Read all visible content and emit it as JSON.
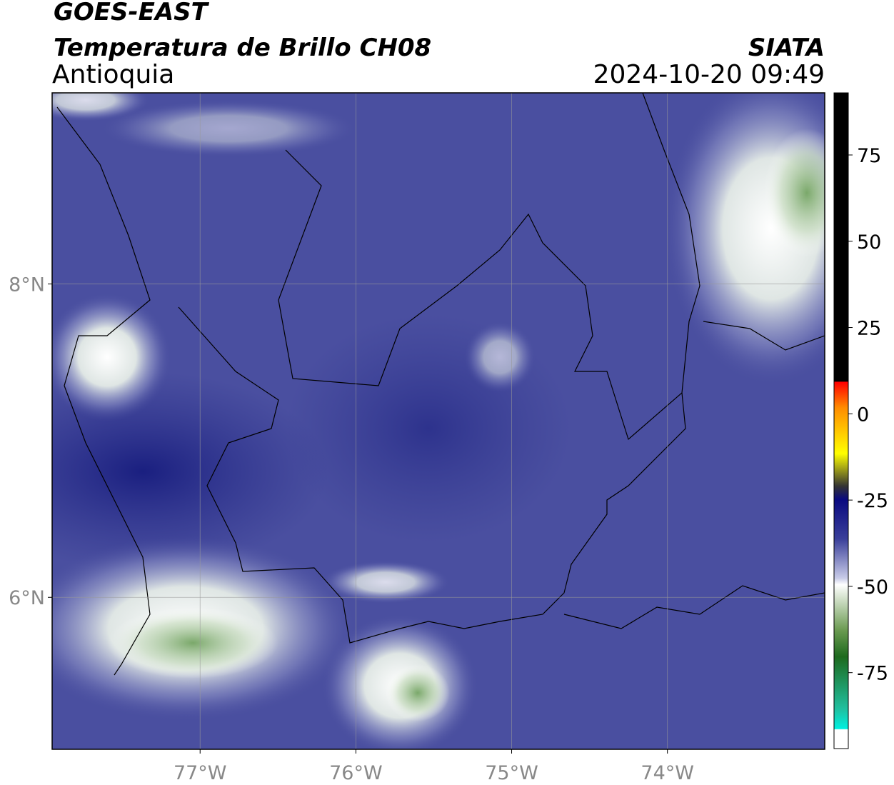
{
  "header": {
    "title": "GOES-EAST",
    "subtitle": "Temperatura de Brillo CH08",
    "region": "Antioquia",
    "source": "SIATA",
    "datetime": "2024-10-20 09:49"
  },
  "map": {
    "xlim": [
      -77.95,
      -72.99
    ],
    "ylim": [
      5.03,
      9.22
    ],
    "xticks": [
      {
        "value": -77,
        "label": "77°W"
      },
      {
        "value": -76,
        "label": "76°W"
      },
      {
        "value": -75,
        "label": "75°W"
      },
      {
        "value": -74,
        "label": "74°W"
      }
    ],
    "yticks": [
      {
        "value": 8,
        "label": "8°N"
      },
      {
        "value": 6,
        "label": "6°N"
      }
    ],
    "grid": true
  },
  "colorbar": {
    "ylim": [
      -97,
      93
    ],
    "yticks": [
      75,
      50,
      25,
      0,
      -25,
      -50,
      -75
    ]
  }
}
